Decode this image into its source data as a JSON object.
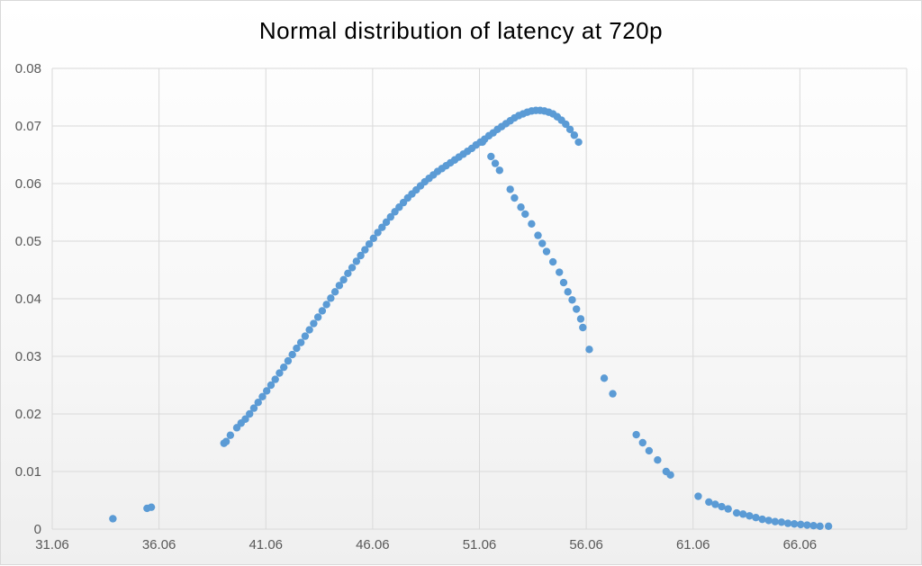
{
  "chart_data": {
    "type": "scatter",
    "title": "Normal distribution of latency at 720p",
    "xlabel": "",
    "ylabel": "",
    "xlim": [
      31.06,
      71.06
    ],
    "ylim": [
      0,
      0.08
    ],
    "x_ticks": [
      "31.06",
      "36.06",
      "41.06",
      "46.06",
      "51.06",
      "56.06",
      "61.06",
      "66.06"
    ],
    "y_ticks": [
      "0",
      "0.01",
      "0.02",
      "0.03",
      "0.04",
      "0.05",
      "0.06",
      "0.07",
      "0.08"
    ],
    "grid": true,
    "legend": "none",
    "marker_color": "#5B9BD5",
    "series": [
      {
        "values": [
          [
            33.9,
            0.0018
          ],
          [
            35.5,
            0.0036
          ],
          [
            35.7,
            0.0038
          ],
          [
            39.1,
            0.0149
          ],
          [
            39.2,
            0.0152
          ],
          [
            39.4,
            0.0163
          ],
          [
            39.7,
            0.0176
          ],
          [
            39.9,
            0.0184
          ],
          [
            40.1,
            0.0191
          ],
          [
            40.3,
            0.02
          ],
          [
            40.5,
            0.021
          ],
          [
            40.7,
            0.022
          ],
          [
            40.9,
            0.023
          ],
          [
            41.1,
            0.024
          ],
          [
            41.3,
            0.025
          ],
          [
            41.5,
            0.026
          ],
          [
            41.7,
            0.0271
          ],
          [
            41.9,
            0.0281
          ],
          [
            42.1,
            0.0292
          ],
          [
            42.3,
            0.0303
          ],
          [
            42.5,
            0.0314
          ],
          [
            42.7,
            0.0324
          ],
          [
            42.9,
            0.0335
          ],
          [
            43.1,
            0.0346
          ],
          [
            43.3,
            0.0357
          ],
          [
            43.5,
            0.0368
          ],
          [
            43.7,
            0.0379
          ],
          [
            43.9,
            0.039
          ],
          [
            44.1,
            0.0401
          ],
          [
            44.3,
            0.0412
          ],
          [
            44.5,
            0.0423
          ],
          [
            44.7,
            0.0433
          ],
          [
            44.9,
            0.0444
          ],
          [
            45.1,
            0.0454
          ],
          [
            45.3,
            0.0465
          ],
          [
            45.5,
            0.0475
          ],
          [
            45.7,
            0.0485
          ],
          [
            45.9,
            0.0495
          ],
          [
            46.1,
            0.0505
          ],
          [
            46.3,
            0.0515
          ],
          [
            46.5,
            0.0524
          ],
          [
            46.7,
            0.0533
          ],
          [
            46.9,
            0.0542
          ],
          [
            47.1,
            0.0551
          ],
          [
            47.3,
            0.0559
          ],
          [
            47.5,
            0.0567
          ],
          [
            47.7,
            0.0575
          ],
          [
            47.9,
            0.0582
          ],
          [
            48.1,
            0.0589
          ],
          [
            48.3,
            0.0596
          ],
          [
            48.5,
            0.0603
          ],
          [
            48.7,
            0.0609
          ],
          [
            48.9,
            0.0615
          ],
          [
            49.1,
            0.0621
          ],
          [
            49.3,
            0.0626
          ],
          [
            49.5,
            0.0631
          ],
          [
            49.7,
            0.0636
          ],
          [
            49.9,
            0.0641
          ],
          [
            50.1,
            0.0646
          ],
          [
            50.3,
            0.0651
          ],
          [
            50.5,
            0.0656
          ],
          [
            50.7,
            0.0661
          ],
          [
            50.9,
            0.0667
          ],
          [
            51.1,
            0.0672
          ],
          [
            51.3,
            0.0677
          ],
          [
            51.5,
            0.0683
          ],
          [
            51.7,
            0.0688
          ],
          [
            51.9,
            0.0694
          ],
          [
            52.1,
            0.0699
          ],
          [
            52.3,
            0.0704
          ],
          [
            52.5,
            0.0709
          ],
          [
            52.7,
            0.0714
          ],
          [
            52.9,
            0.0718
          ],
          [
            53.1,
            0.0721
          ],
          [
            53.3,
            0.0724
          ],
          [
            53.5,
            0.0726
          ],
          [
            53.7,
            0.0727
          ],
          [
            53.9,
            0.0727
          ],
          [
            54.1,
            0.0726
          ],
          [
            54.3,
            0.0724
          ],
          [
            54.5,
            0.0721
          ],
          [
            54.7,
            0.0716
          ],
          [
            54.9,
            0.071
          ],
          [
            55.1,
            0.0703
          ],
          [
            55.3,
            0.0694
          ],
          [
            55.5,
            0.0684
          ],
          [
            55.7,
            0.0672
          ],
          [
            51.2,
            0.0672
          ],
          [
            51.6,
            0.0647
          ],
          [
            51.8,
            0.0635
          ],
          [
            52.0,
            0.0623
          ],
          [
            52.5,
            0.059
          ],
          [
            52.7,
            0.0575
          ],
          [
            53.0,
            0.0559
          ],
          [
            53.2,
            0.0547
          ],
          [
            53.5,
            0.053
          ],
          [
            53.8,
            0.051
          ],
          [
            54.0,
            0.0496
          ],
          [
            54.2,
            0.0482
          ],
          [
            54.5,
            0.0464
          ],
          [
            54.8,
            0.0446
          ],
          [
            55.0,
            0.0428
          ],
          [
            55.2,
            0.0412
          ],
          [
            55.4,
            0.0398
          ],
          [
            55.6,
            0.0382
          ],
          [
            55.8,
            0.0365
          ],
          [
            55.9,
            0.035
          ],
          [
            56.2,
            0.0312
          ],
          [
            56.9,
            0.0262
          ],
          [
            57.3,
            0.0235
          ],
          [
            58.4,
            0.0164
          ],
          [
            58.7,
            0.015
          ],
          [
            59.0,
            0.0136
          ],
          [
            59.4,
            0.012
          ],
          [
            59.8,
            0.01
          ],
          [
            60.0,
            0.0094
          ],
          [
            61.3,
            0.0057
          ],
          [
            61.8,
            0.0047
          ],
          [
            62.1,
            0.0043
          ],
          [
            62.4,
            0.0039
          ],
          [
            62.7,
            0.0035
          ],
          [
            63.1,
            0.0028
          ],
          [
            63.4,
            0.0026
          ],
          [
            63.7,
            0.0023
          ],
          [
            64.0,
            0.002
          ],
          [
            64.3,
            0.0017
          ],
          [
            64.6,
            0.0015
          ],
          [
            64.9,
            0.0013
          ],
          [
            65.2,
            0.0012
          ],
          [
            65.5,
            0.001
          ],
          [
            65.8,
            0.0009
          ],
          [
            66.1,
            0.0008
          ],
          [
            66.4,
            0.0007
          ],
          [
            66.7,
            0.0006
          ],
          [
            67.0,
            0.0005
          ],
          [
            67.4,
            0.0005
          ]
        ]
      }
    ]
  }
}
